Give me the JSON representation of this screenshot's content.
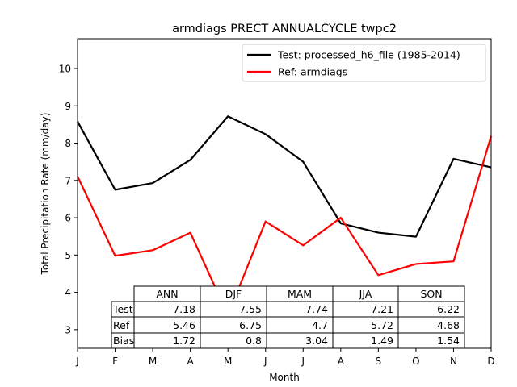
{
  "chart_data": {
    "type": "line",
    "title": "armdiags PRECT ANNUALCYCLE twpc2",
    "xlabel": "Month",
    "ylabel": "Total Precipitation Rate (mm/day)",
    "categories": [
      "J",
      "F",
      "M",
      "A",
      "M",
      "J",
      "J",
      "A",
      "S",
      "O",
      "N",
      "D"
    ],
    "ylim": [
      2.5,
      10.8
    ],
    "yticks": [
      3,
      4,
      5,
      6,
      7,
      8,
      9,
      10
    ],
    "grid": false,
    "legend_position": "top-right",
    "series": [
      {
        "name": "Test: processed_h6_file (1985-2014)",
        "color": "#000000",
        "values": [
          8.58,
          6.75,
          6.93,
          7.55,
          8.72,
          8.24,
          7.5,
          5.85,
          5.6,
          5.49,
          7.58,
          7.35
        ]
      },
      {
        "name": "Ref: armdiags",
        "color": "#ff0000",
        "values": [
          7.11,
          4.98,
          5.13,
          5.6,
          3.39,
          5.9,
          5.26,
          6.0,
          4.46,
          4.76,
          4.83,
          8.19
        ]
      }
    ],
    "table": {
      "col_headers": [
        "ANN",
        "DJF",
        "MAM",
        "JJA",
        "SON"
      ],
      "rows": [
        {
          "label": "Test",
          "values": [
            "7.18",
            "7.55",
            "7.74",
            "7.21",
            "6.22"
          ]
        },
        {
          "label": "Ref",
          "values": [
            "5.46",
            "6.75",
            "4.7",
            "5.72",
            "4.68"
          ]
        },
        {
          "label": "Bias",
          "values": [
            "1.72",
            "0.8",
            "3.04",
            "1.49",
            "1.54"
          ]
        }
      ]
    }
  }
}
